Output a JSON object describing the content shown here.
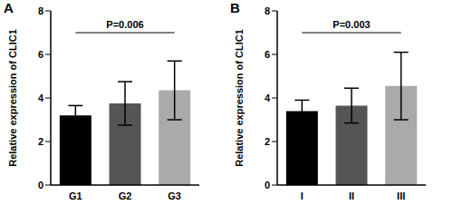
{
  "chart_data": [
    {
      "type": "bar",
      "title": "A",
      "y_label": "Relative expression of CLIC1",
      "categories": [
        "G1",
        "G2",
        "G3"
      ],
      "values": [
        3.2,
        3.75,
        4.35
      ],
      "errors": [
        0.45,
        1.0,
        1.35
      ],
      "colors": [
        "#000000",
        "#555555",
        "#aaaaaa"
      ],
      "ylim": [
        0,
        8
      ],
      "yticks": [
        0,
        2,
        4,
        6,
        8
      ],
      "annotation": {
        "text": "P=0.006",
        "from": "G1",
        "to": "G3",
        "y": 7
      }
    },
    {
      "type": "bar",
      "title": "B",
      "y_label": "Relative expression of CLIC1",
      "categories": [
        "I",
        "II",
        "III"
      ],
      "values": [
        3.4,
        3.65,
        4.55
      ],
      "errors": [
        0.5,
        0.8,
        1.55
      ],
      "colors": [
        "#000000",
        "#555555",
        "#aaaaaa"
      ],
      "ylim": [
        0,
        8
      ],
      "yticks": [
        0,
        2,
        4,
        6,
        8
      ],
      "annotation": {
        "text": "P=0.003",
        "from": "I",
        "to": "III",
        "y": 7
      }
    }
  ]
}
